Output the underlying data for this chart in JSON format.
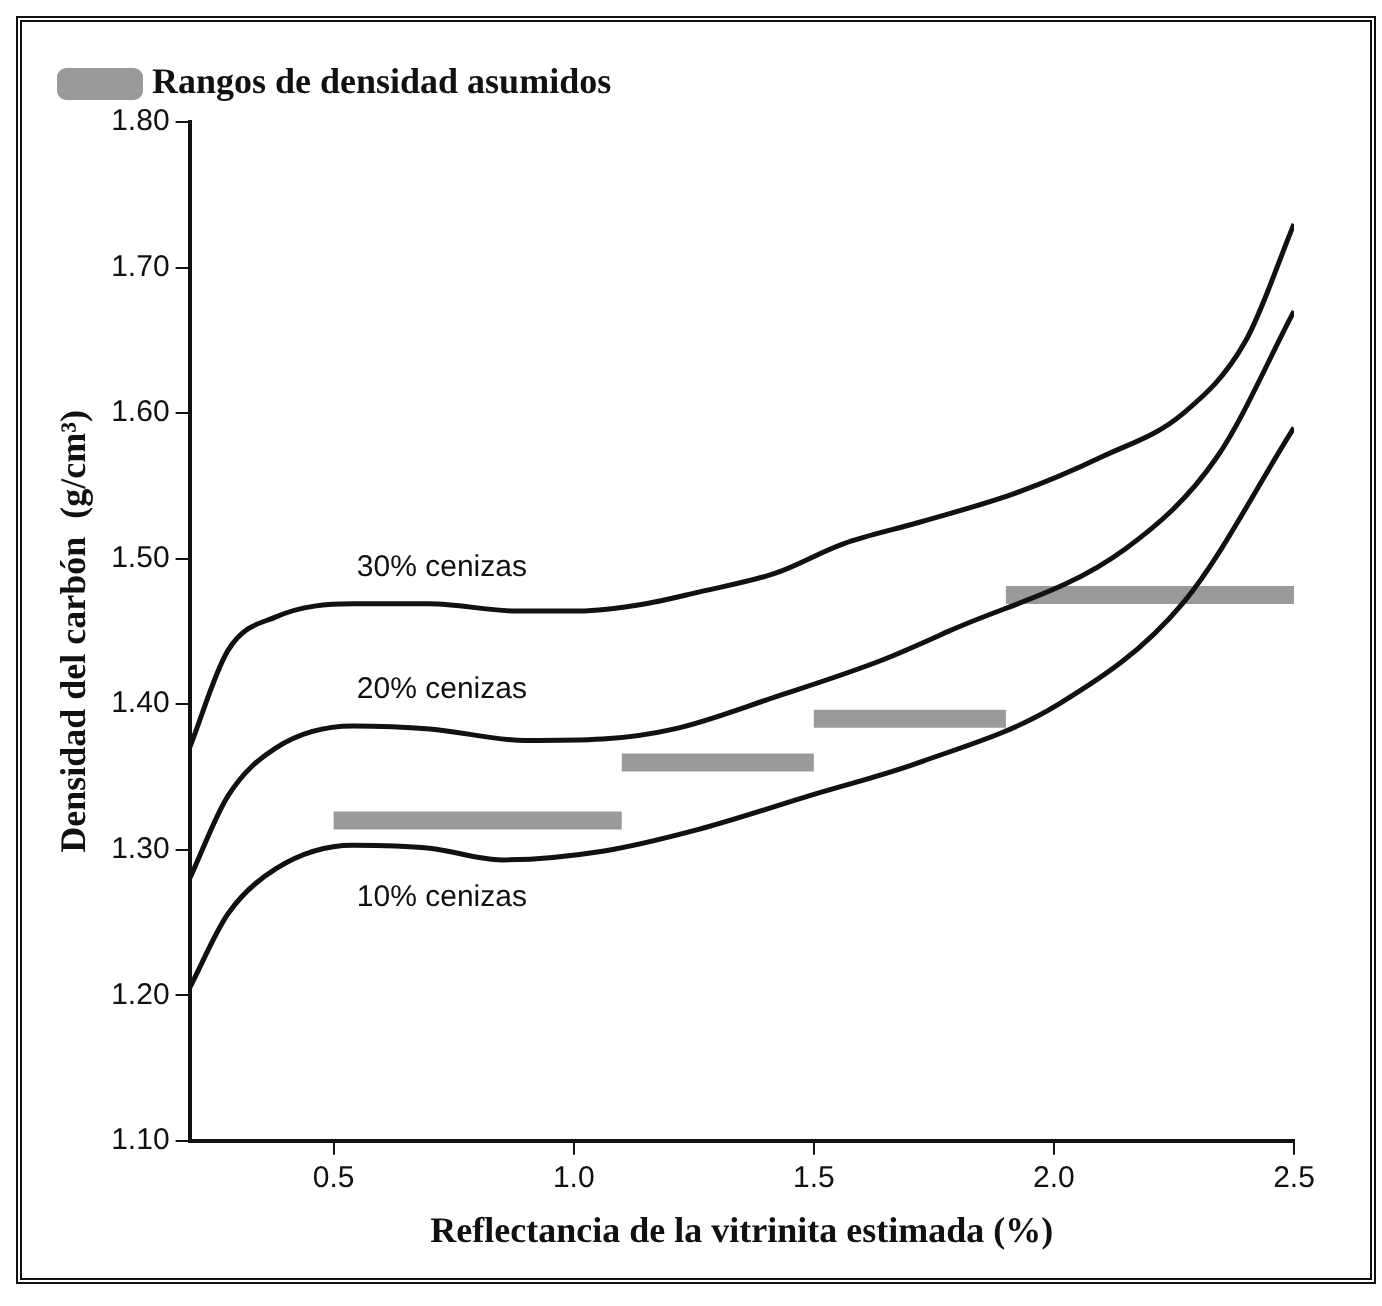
{
  "chart_data": {
    "type": "line",
    "xlabel": "Reflectancia de la vitrinita estimada (%)",
    "ylabel": "Densidad del carbón  (g/cm³)",
    "xlim": [
      0.2,
      2.5
    ],
    "ylim": [
      1.1,
      1.8
    ],
    "xticks": [
      0.5,
      {
        "value": 1.0,
        "label": "1.0"
      },
      1.5,
      {
        "value": 2.0,
        "label": "2.0"
      },
      2.5
    ],
    "yticks": [
      {
        "value": 1.1,
        "label": "1.10"
      },
      {
        "value": 1.2,
        "label": "1.20"
      },
      {
        "value": 1.3,
        "label": "1.30"
      },
      {
        "value": 1.4,
        "label": "1.40"
      },
      {
        "value": 1.5,
        "label": "1.50"
      },
      {
        "value": 1.6,
        "label": "1.60"
      },
      {
        "value": 1.7,
        "label": "1.70"
      },
      {
        "value": 1.8,
        "label": "1.80"
      }
    ],
    "grid": false,
    "legend": "top left",
    "marker": "none",
    "line_style": "solid",
    "series": [
      {
        "name": "30% cenizas",
        "color": "#111111",
        "x": [
          0.2,
          0.28,
          0.38,
          0.54,
          0.7,
          0.88,
          1.01,
          1.15,
          1.26,
          1.42,
          1.56,
          1.72,
          1.92,
          2.1,
          2.27,
          2.4,
          2.5
        ],
        "values": [
          1.37,
          1.437,
          1.46,
          1.469,
          1.469,
          1.464,
          1.464,
          1.469,
          1.477,
          1.49,
          1.51,
          1.525,
          1.545,
          1.57,
          1.6,
          1.65,
          1.73
        ]
      },
      {
        "name": "20% cenizas",
        "color": "#111111",
        "x": [
          0.2,
          0.28,
          0.38,
          0.54,
          0.7,
          0.9,
          1.06,
          1.21,
          1.42,
          1.64,
          1.78,
          2.15,
          2.34,
          2.5
        ],
        "values": [
          1.28,
          1.337,
          1.37,
          1.385,
          1.383,
          1.375,
          1.376,
          1.383,
          1.405,
          1.43,
          1.45,
          1.507,
          1.57,
          1.67
        ]
      },
      {
        "name": "10% cenizas",
        "color": "#111111",
        "x": [
          0.2,
          0.28,
          0.38,
          0.54,
          0.7,
          0.85,
          1.06,
          1.26,
          1.49,
          1.72,
          2.01,
          2.27,
          2.5
        ],
        "values": [
          1.205,
          1.256,
          1.287,
          1.303,
          1.301,
          1.293,
          1.299,
          1.314,
          1.337,
          1.36,
          1.4,
          1.47,
          1.59
        ]
      },
      {
        "name": "Rangos de densidad asumidos",
        "color": "#9a9a9a",
        "x": [
          0.5,
          1.1
        ],
        "values": [
          1.32,
          1.32
        ]
      },
      {
        "color": "#9a9a9a",
        "x": [
          1.1,
          1.5
        ],
        "values": [
          1.36,
          1.36
        ]
      },
      {
        "color": "#9a9a9a",
        "x": [
          1.5,
          1.9
        ],
        "values": [
          1.39,
          1.39
        ]
      },
      {
        "color": "#9a9a9a",
        "x": [
          1.9,
          2.5
        ],
        "values": [
          1.475,
          1.475
        ]
      }
    ]
  }
}
